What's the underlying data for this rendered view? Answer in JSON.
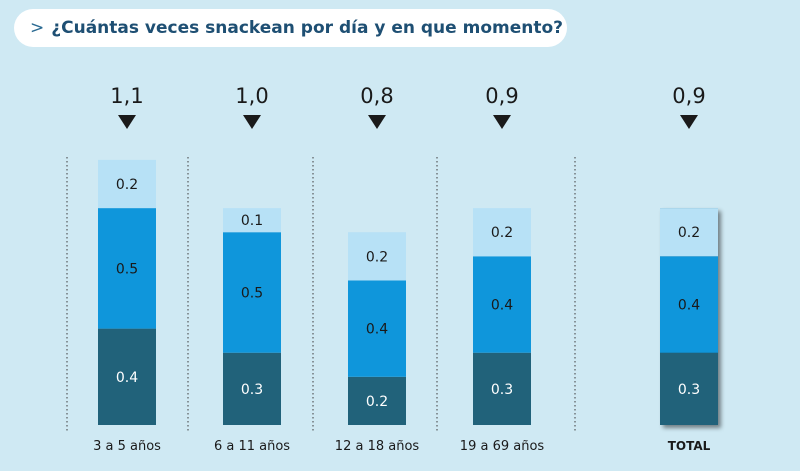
{
  "header": {
    "chevron": ">",
    "title": "¿Cuántas veces snackean por día y en que momento?"
  },
  "colors": {
    "background": "#cfe9f3",
    "bottom_segment": "#21627a",
    "middle_segment": "#0f96db",
    "top_segment": "#b7e1f6",
    "divider": "#3c3c3c",
    "text_dark": "#1a1a1a"
  },
  "chart_data": {
    "type": "bar",
    "stacked": true,
    "categories": [
      "3 a 5 años",
      "6 a 11 años",
      "12 a 18 años",
      "19 a 69 años",
      "TOTAL"
    ],
    "totals": [
      "1,1",
      "1,0",
      "0,8",
      "0,9",
      "0,9"
    ],
    "series": [
      {
        "values": [
          0.4,
          0.3,
          0.2,
          0.3,
          0.3
        ],
        "labels": [
          "0.4",
          "0.3",
          "0.2",
          "0.3",
          "0.3"
        ]
      },
      {
        "values": [
          0.5,
          0.5,
          0.4,
          0.4,
          0.4
        ],
        "labels": [
          "0.5",
          "0.5",
          "0.4",
          "0.4",
          "0.4"
        ]
      },
      {
        "values": [
          0.2,
          0.1,
          0.2,
          0.2,
          0.2
        ],
        "labels": [
          "0.2",
          "0.1",
          "0.2",
          "0.2",
          "0.2"
        ]
      }
    ],
    "grid": false,
    "legend": "none"
  }
}
